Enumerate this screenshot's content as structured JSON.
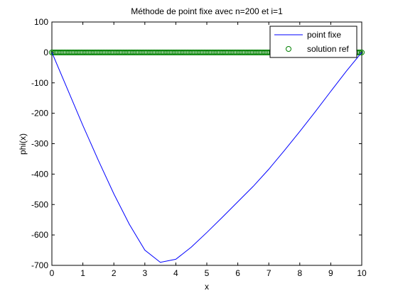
{
  "chart_data": {
    "type": "line",
    "title": "Méthode de point fixe avec n=200 et i=1",
    "xlabel": "x",
    "ylabel": "phi(x)",
    "xlim": [
      0,
      10
    ],
    "ylim": [
      -700,
      100
    ],
    "xticks": [
      0,
      1,
      2,
      3,
      4,
      5,
      6,
      7,
      8,
      9,
      10
    ],
    "yticks": [
      100,
      0,
      -100,
      -200,
      -300,
      -400,
      -500,
      -600,
      -700
    ],
    "grid": false,
    "legend_position": "top-right",
    "series": [
      {
        "name": "point fixe",
        "style": "line",
        "color": "#0000ff",
        "x": [
          0,
          0.5,
          1,
          1.5,
          2,
          2.5,
          3,
          3.5,
          4,
          4.5,
          5,
          5.5,
          6,
          6.5,
          7,
          7.5,
          8,
          8.5,
          9,
          9.5,
          10
        ],
        "y": [
          0,
          -120,
          -240,
          -355,
          -465,
          -565,
          -650,
          -690,
          -680,
          -640,
          -592,
          -542,
          -491,
          -440,
          -384,
          -323,
          -260,
          -195,
          -128,
          -62,
          0
        ]
      },
      {
        "name": "solution ref",
        "style": "markers",
        "marker": "circle",
        "color": "#008000",
        "x_range": [
          0,
          10
        ],
        "count": 200,
        "y": 0
      }
    ]
  }
}
